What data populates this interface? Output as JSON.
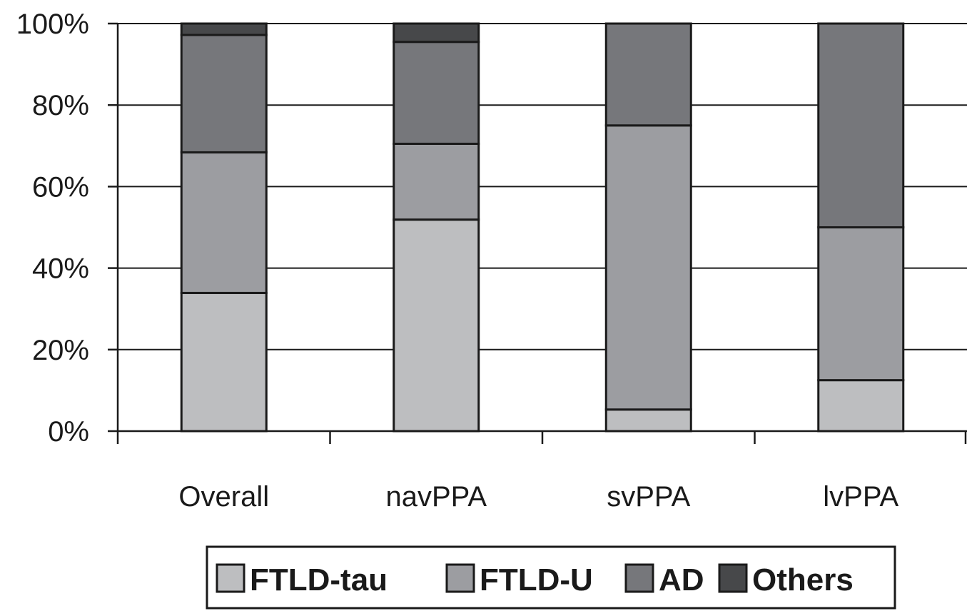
{
  "chart_data": {
    "type": "bar",
    "stacked": true,
    "categories": [
      "Overall",
      "navPPA",
      "svPPA",
      "lvPPA"
    ],
    "series": [
      {
        "name": "FTLD-tau",
        "values": [
          33.9,
          51.9,
          5.3,
          12.5
        ]
      },
      {
        "name": "FTLD-U",
        "values": [
          34.5,
          18.6,
          69.7,
          37.5
        ]
      },
      {
        "name": "AD",
        "values": [
          28.8,
          25.0,
          25.0,
          50.0
        ]
      },
      {
        "name": "Others",
        "values": [
          2.8,
          4.5,
          0.0,
          0.0
        ]
      }
    ],
    "y_ticks": [
      "0%",
      "20%",
      "40%",
      "60%",
      "80%",
      "100%"
    ],
    "ylim": [
      0,
      100
    ],
    "y_unit": "%",
    "grid": true,
    "legend_position": "bottom"
  },
  "colors": {
    "FTLD-tau": "#bdbec0",
    "FTLD-U": "#9c9da1",
    "AD": "#76777b",
    "Others": "#47484a",
    "axis": "#1a1a1a",
    "grid": "#1a1a1a"
  }
}
